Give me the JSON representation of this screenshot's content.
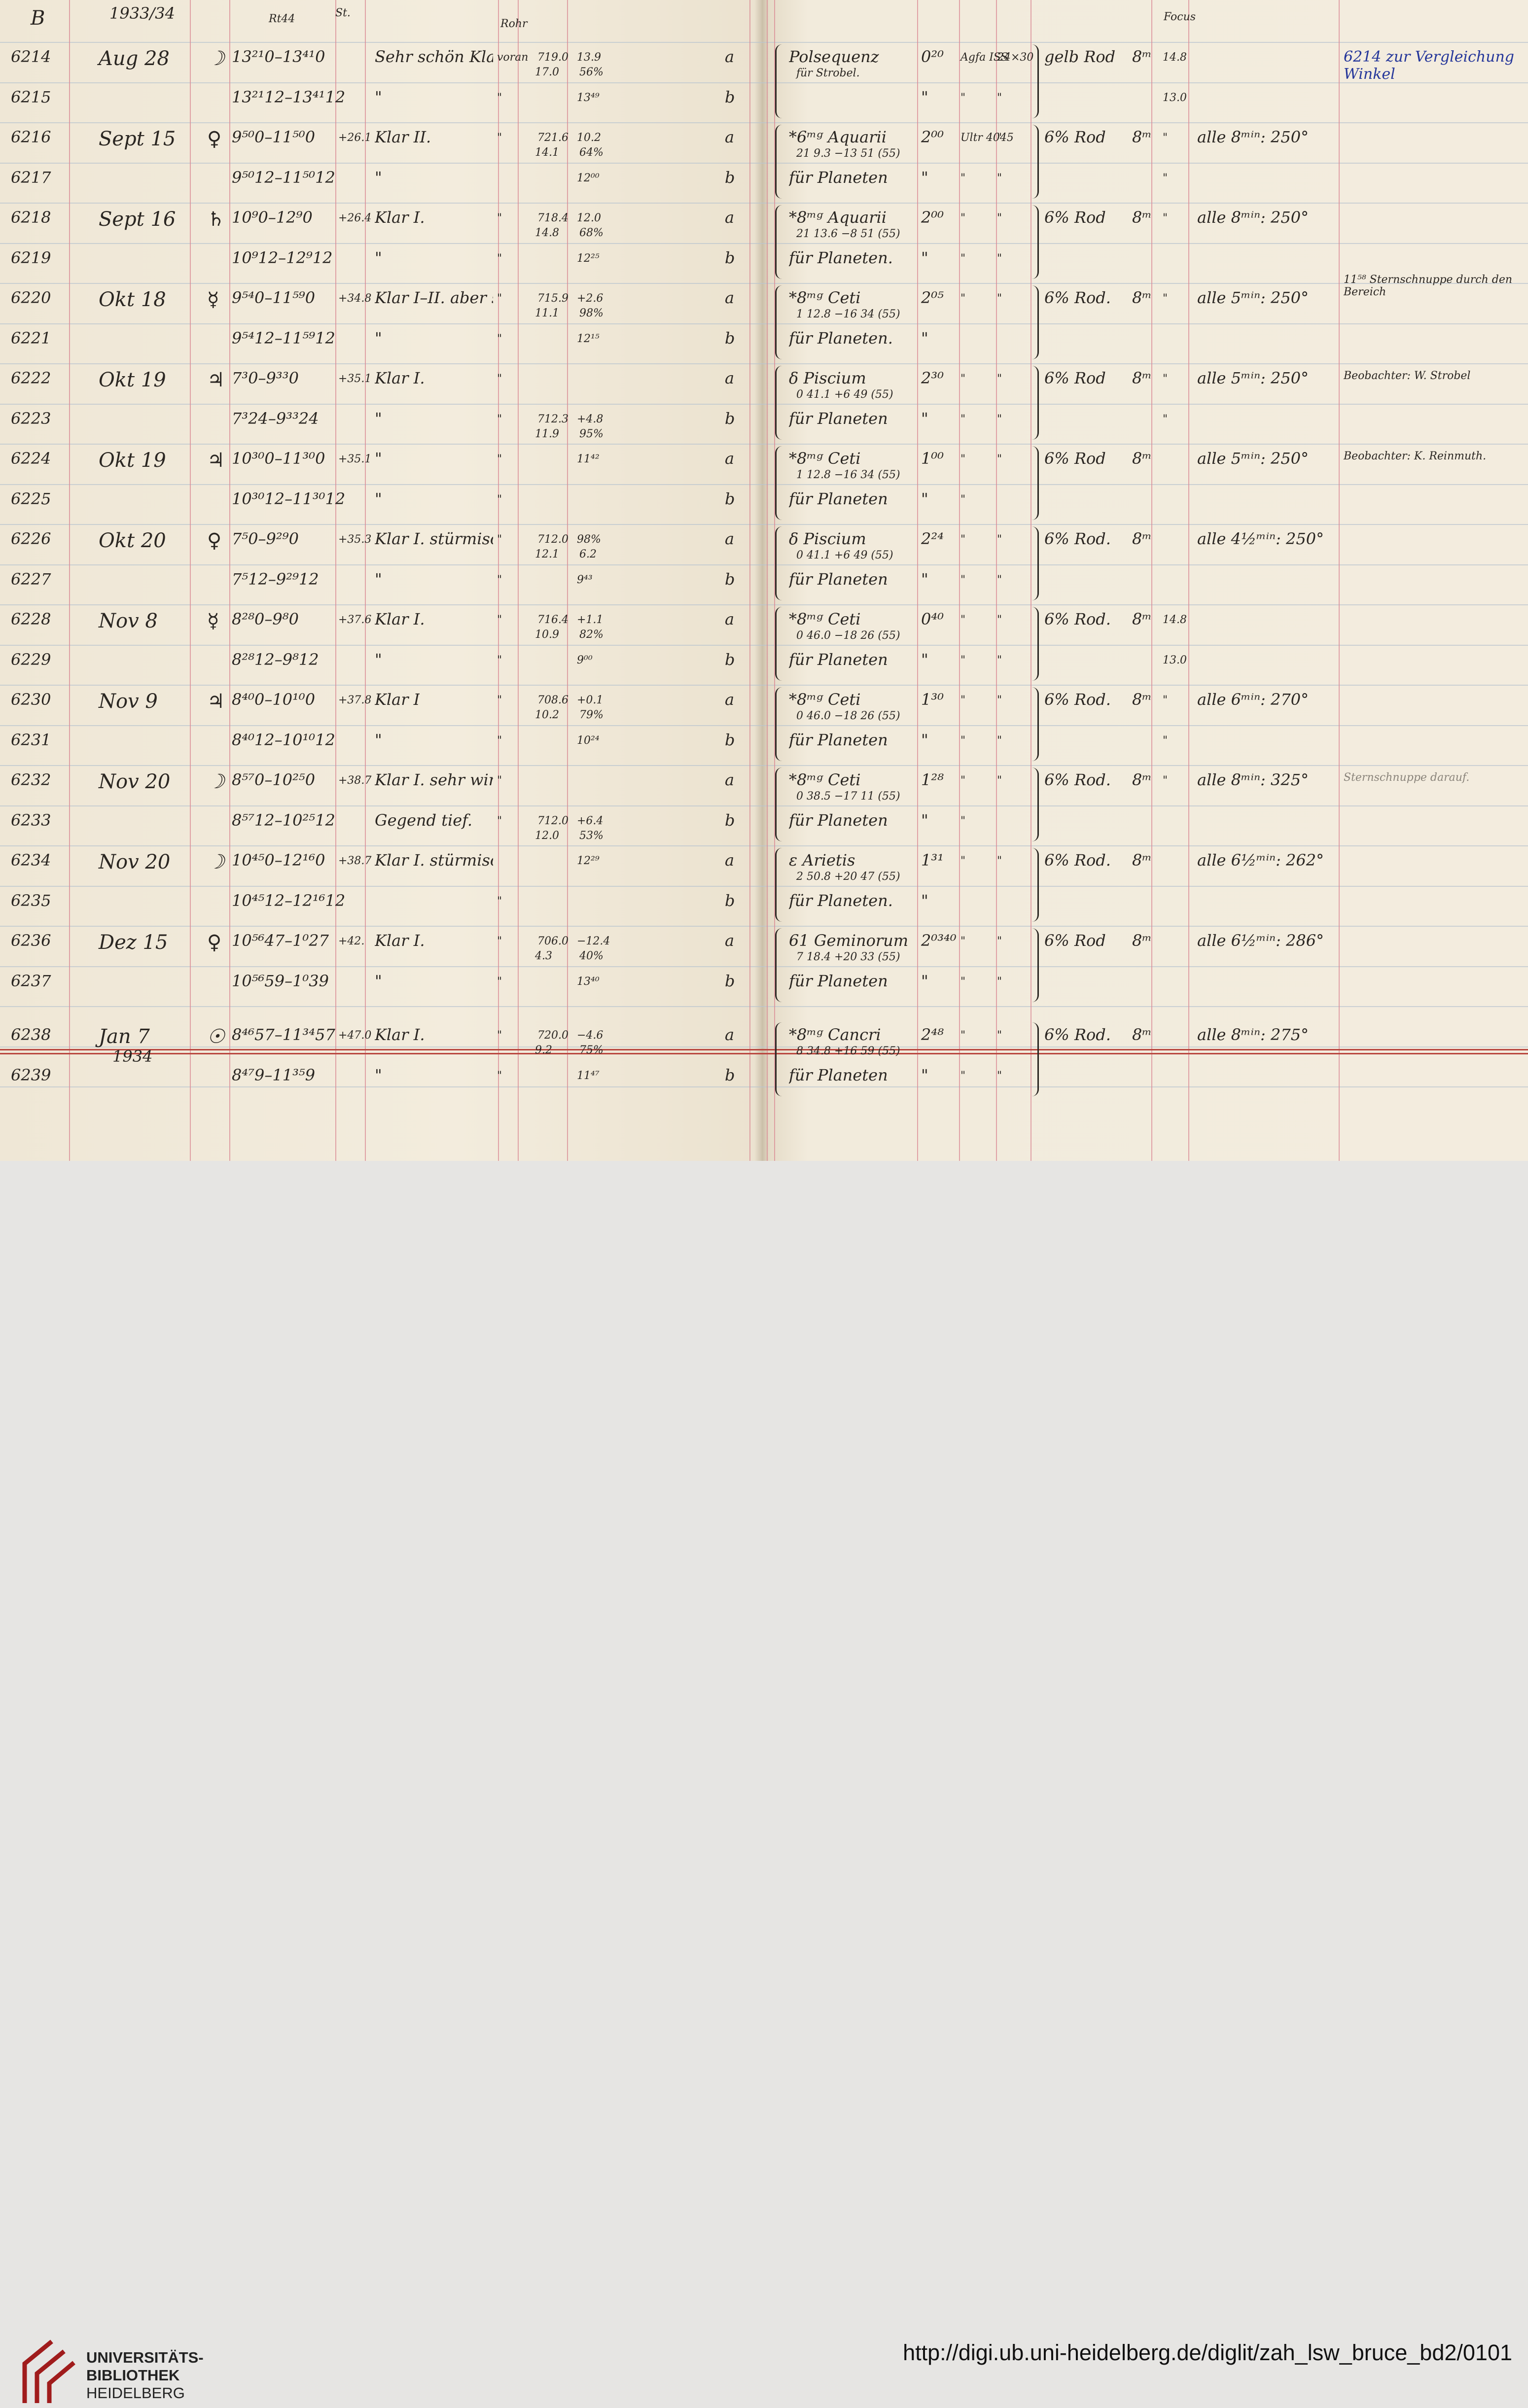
{
  "header": {
    "series": "B",
    "year": "1933/34",
    "col_time": "Rt44",
    "col_st": "St.",
    "col_rohr": "Rohr",
    "col_focus": "Focus"
  },
  "rows": [
    {
      "plate": "6214",
      "date": "Aug 28",
      "day": "☽",
      "time": "13²¹0–13⁴¹0",
      "temp": "",
      "weather": "Sehr schön Klar I.",
      "rohr": "voran",
      "baro": "719.0",
      "therm": "13.9",
      "t2": "17.0",
      "hum": "56%",
      "ab": "a",
      "object": "Polsequenz",
      "object_sub": "für Strobel.",
      "mag": "0²⁰",
      "cam": "Agfa ISS",
      "size": "24×30",
      "filter": "gelb Rod",
      "exp": "8ᵐ",
      "focus": "14.8",
      "note": "",
      "remark": "6214 zur Vergleichung Winkel"
    },
    {
      "plate": "6215",
      "date": "",
      "day": "",
      "time": "13²¹12–13⁴¹12",
      "temp": "",
      "weather": "\"",
      "rohr": "\"",
      "baro": "",
      "therm": "13⁴⁹",
      "t2": "",
      "hum": "",
      "ab": "b",
      "object": "",
      "object_sub": "",
      "mag": "\"",
      "cam": "\"",
      "size": "\"",
      "filter": "",
      "exp": "",
      "focus": "13.0",
      "note": "",
      "remark": ""
    },
    {
      "plate": "6216",
      "date": "Sept 15",
      "day": "♀",
      "time": "9⁵⁰0–11⁵⁰0",
      "temp": "+26.1",
      "weather": "Klar II.",
      "rohr": "\"",
      "baro": "721.6",
      "therm": "10.2",
      "t2": "14.1",
      "hum": "64%",
      "ab": "a",
      "object": "*6ᵐᵍ Aquarii",
      "object_sub": "21 9.3 −13 51 (55)",
      "mag": "2⁰⁰",
      "cam": "Ultr 4045",
      "size": "\"",
      "filter": "6% Rod",
      "exp": "8ᵐ",
      "focus": "\"",
      "note": "alle 8ᵐⁱⁿ: 250°",
      "remark": ""
    },
    {
      "plate": "6217",
      "date": "",
      "day": "",
      "time": "9⁵⁰12–11⁵⁰12",
      "temp": "",
      "weather": "\"",
      "rohr": "",
      "baro": "",
      "therm": "12⁰⁰",
      "t2": "",
      "hum": "",
      "ab": "b",
      "object": "für Planeten",
      "object_sub": "",
      "mag": "\"",
      "cam": "\"",
      "size": "\"",
      "filter": "",
      "exp": "",
      "focus": "\"",
      "note": "",
      "remark": ""
    },
    {
      "plate": "6218",
      "date": "Sept 16",
      "day": "♄",
      "time": "10⁹0–12⁹0",
      "temp": "+26.4",
      "weather": "Klar I.",
      "rohr": "\"",
      "baro": "718.4",
      "therm": "12.0",
      "t2": "14.8",
      "hum": "68%",
      "ab": "a",
      "object": "*8ᵐᵍ Aquarii",
      "object_sub": "21 13.6 −8 51 (55)",
      "mag": "2⁰⁰",
      "cam": "\"",
      "size": "\"",
      "filter": "6% Rod",
      "exp": "8ᵐ",
      "focus": "\"",
      "note": "alle 8ᵐⁱⁿ: 250°",
      "remark": ""
    },
    {
      "plate": "6219",
      "date": "",
      "day": "",
      "time": "10⁹12–12⁹12",
      "temp": "",
      "weather": "\"",
      "rohr": "\"",
      "baro": "",
      "therm": "12²⁵",
      "t2": "",
      "hum": "",
      "ab": "b",
      "object": "für Planeten.",
      "object_sub": "",
      "mag": "\"",
      "cam": "\"",
      "size": "\"",
      "filter": "",
      "exp": "",
      "focus": "",
      "note": "",
      "remark": ""
    },
    {
      "plate": "6220",
      "date": "Okt 18",
      "day": "☿",
      "time": "9⁵⁴0–11⁵⁹0",
      "temp": "+34.8",
      "weather": "Klar I–II. aber sehr feucht.",
      "rohr": "\"",
      "baro": "715.9",
      "therm": "+2.6",
      "t2": "11.1",
      "hum": "98%",
      "ab": "a",
      "object": "*8ᵐᵍ Ceti",
      "object_sub": "1 12.8 −16 34 (55)",
      "mag": "2⁰⁵",
      "cam": "\"",
      "size": "\"",
      "filter": "6% Rod.",
      "exp": "8ᵐ",
      "focus": "\"",
      "note": "alle 5ᵐⁱⁿ: 250°",
      "remark": "11⁵⁸ Sternschnuppe durch den Bereich"
    },
    {
      "plate": "6221",
      "date": "",
      "day": "",
      "time": "9⁵⁴12–11⁵⁹12",
      "temp": "",
      "weather": "\"",
      "rohr": "\"",
      "baro": "",
      "therm": "12¹⁵",
      "t2": "",
      "hum": "",
      "ab": "b",
      "object": "für Planeten.",
      "object_sub": "",
      "mag": "\"",
      "cam": "",
      "size": "",
      "filter": "",
      "exp": "",
      "focus": "",
      "note": "",
      "remark": ""
    },
    {
      "plate": "6222",
      "date": "Okt 19",
      "day": "♃",
      "time": "7³0–9³³0",
      "temp": "+35.1",
      "weather": "Klar I.",
      "rohr": "\"",
      "baro": "",
      "therm": "",
      "t2": "",
      "hum": "",
      "ab": "a",
      "object": "δ Piscium",
      "object_sub": "0 41.1 +6 49 (55)",
      "mag": "2³⁰",
      "cam": "\"",
      "size": "\"",
      "filter": "6% Rod",
      "exp": "8ᵐ",
      "focus": "\"",
      "note": "alle 5ᵐⁱⁿ: 250°",
      "remark": "Beobachter: W. Strobel"
    },
    {
      "plate": "6223",
      "date": "",
      "day": "",
      "time": "7³24–9³³24",
      "temp": "",
      "weather": "\"",
      "rohr": "\"",
      "baro": "712.3",
      "therm": "+4.8",
      "t2": "11.9",
      "hum": "95%",
      "ab": "b",
      "object": "für Planeten",
      "object_sub": "",
      "mag": "\"",
      "cam": "\"",
      "size": "\"",
      "filter": "",
      "exp": "",
      "focus": "\"",
      "note": "",
      "remark": ""
    },
    {
      "plate": "6224",
      "date": "Okt 19",
      "day": "♃",
      "time": "10³⁰0–11³⁰0",
      "temp": "+35.1",
      "weather": "\"",
      "rohr": "\"",
      "baro": "",
      "therm": "11⁴²",
      "t2": "",
      "hum": "",
      "ab": "a",
      "object": "*8ᵐᵍ Ceti",
      "object_sub": "1 12.8 −16 34 (55)",
      "mag": "1⁰⁰",
      "cam": "\"",
      "size": "\"",
      "filter": "6% Rod",
      "exp": "8ᵐ",
      "focus": "",
      "note": "alle 5ᵐⁱⁿ: 250°",
      "remark": "Beobachter: K. Reinmuth."
    },
    {
      "plate": "6225",
      "date": "",
      "day": "",
      "time": "10³⁰12–11³⁰12",
      "temp": "",
      "weather": "\"",
      "rohr": "\"",
      "baro": "",
      "therm": "",
      "t2": "",
      "hum": "",
      "ab": "b",
      "object": "für Planeten",
      "object_sub": "",
      "mag": "\"",
      "cam": "\"",
      "size": "",
      "filter": "",
      "exp": "",
      "focus": "",
      "note": "",
      "remark": ""
    },
    {
      "plate": "6226",
      "date": "Okt 20",
      "day": "♀",
      "time": "7⁵0–9²⁹0",
      "temp": "+35.3",
      "weather": "Klar I. stürmisch.",
      "rohr": "\"",
      "baro": "712.0",
      "therm": "98%",
      "t2": "12.1",
      "hum": "6.2",
      "ab": "a",
      "object": "δ Piscium",
      "object_sub": "0 41.1 +6 49 (55)",
      "mag": "2²⁴",
      "cam": "\"",
      "size": "\"",
      "filter": "6% Rod.",
      "exp": "8ᵐ",
      "focus": "",
      "note": "alle 4½ᵐⁱⁿ: 250°",
      "remark": ""
    },
    {
      "plate": "6227",
      "date": "",
      "day": "",
      "time": "7⁵12–9²⁹12",
      "temp": "",
      "weather": "\"",
      "rohr": "\"",
      "baro": "",
      "therm": "9⁴³",
      "t2": "",
      "hum": "",
      "ab": "b",
      "object": "für Planeten",
      "object_sub": "",
      "mag": "\"",
      "cam": "\"",
      "size": "\"",
      "filter": "",
      "exp": "",
      "focus": "",
      "note": "",
      "remark": ""
    },
    {
      "plate": "6228",
      "date": "Nov 8",
      "day": "☿",
      "time": "8²⁸0–9⁸0",
      "temp": "+37.6",
      "weather": "Klar I.",
      "rohr": "\"",
      "baro": "716.4",
      "therm": "+1.1",
      "t2": "10.9",
      "hum": "82%",
      "ab": "a",
      "object": "*8ᵐᵍ Ceti",
      "object_sub": "0 46.0 −18 26 (55)",
      "mag": "0⁴⁰",
      "cam": "\"",
      "size": "\"",
      "filter": "6% Rod.",
      "exp": "8ᵐ",
      "focus": "14.8",
      "note": "",
      "remark": ""
    },
    {
      "plate": "6229",
      "date": "",
      "day": "",
      "time": "8²⁸12–9⁸12",
      "temp": "",
      "weather": "\"",
      "rohr": "\"",
      "baro": "",
      "therm": "9⁰⁰",
      "t2": "",
      "hum": "",
      "ab": "b",
      "object": "für Planeten",
      "object_sub": "",
      "mag": "\"",
      "cam": "\"",
      "size": "\"",
      "filter": "",
      "exp": "",
      "focus": "13.0",
      "note": "",
      "remark": ""
    },
    {
      "plate": "6230",
      "date": "Nov 9",
      "day": "♃",
      "time": "8⁴⁰0–10¹⁰0",
      "temp": "+37.8",
      "weather": "Klar I",
      "rohr": "\"",
      "baro": "708.6",
      "therm": "+0.1",
      "t2": "10.2",
      "hum": "79%",
      "ab": "a",
      "object": "*8ᵐᵍ Ceti",
      "object_sub": "0 46.0 −18 26 (55)",
      "mag": "1³⁰",
      "cam": "\"",
      "size": "\"",
      "filter": "6% Rod.",
      "exp": "8ᵐ",
      "focus": "\"",
      "note": "alle 6ᵐⁱⁿ: 270°",
      "remark": ""
    },
    {
      "plate": "6231",
      "date": "",
      "day": "",
      "time": "8⁴⁰12–10¹⁰12",
      "temp": "",
      "weather": "\"",
      "rohr": "\"",
      "baro": "",
      "therm": "10²⁴",
      "t2": "",
      "hum": "",
      "ab": "b",
      "object": "für Planeten",
      "object_sub": "",
      "mag": "\"",
      "cam": "\"",
      "size": "\"",
      "filter": "",
      "exp": "",
      "focus": "\"",
      "note": "",
      "remark": ""
    },
    {
      "plate": "6232",
      "date": "Nov 20",
      "day": "☽",
      "time": "8⁵⁷0–10²⁵0",
      "temp": "+38.7",
      "weather": "Klar I. sehr windig.",
      "rohr": "\"",
      "baro": "",
      "therm": "",
      "t2": "",
      "hum": "",
      "ab": "a",
      "object": "*8ᵐᵍ Ceti",
      "object_sub": "0 38.5 −17 11 (55)",
      "mag": "1²⁸",
      "cam": "\"",
      "size": "\"",
      "filter": "6% Rod.",
      "exp": "8ᵐ",
      "focus": "\"",
      "note": "alle 8ᵐⁱⁿ: 325°",
      "remark": "Sternschnuppe darauf."
    },
    {
      "plate": "6233",
      "date": "",
      "day": "",
      "time": "8⁵⁷12–10²⁵12",
      "temp": "",
      "weather": "Gegend tief.",
      "rohr": "\"",
      "baro": "712.0",
      "therm": "+6.4",
      "t2": "12.0",
      "hum": "53%",
      "ab": "b",
      "object": "für Planeten",
      "object_sub": "",
      "mag": "\"",
      "cam": "\"",
      "size": "",
      "filter": "",
      "exp": "",
      "focus": "",
      "note": "",
      "remark": ""
    },
    {
      "plate": "6234",
      "date": "Nov 20",
      "day": "☽",
      "time": "10⁴⁵0–12¹⁶0",
      "temp": "+38.7",
      "weather": "Klar I. stürmisch",
      "rohr": "",
      "baro": "",
      "therm": "12²⁹",
      "t2": "",
      "hum": "",
      "ab": "a",
      "object": "ε Arietis",
      "object_sub": "2 50.8 +20 47 (55)",
      "mag": "1³¹",
      "cam": "\"",
      "size": "\"",
      "filter": "6% Rod.",
      "exp": "8ᵐ",
      "focus": "",
      "note": "alle 6½ᵐⁱⁿ: 262°",
      "remark": ""
    },
    {
      "plate": "6235",
      "date": "",
      "day": "",
      "time": "10⁴⁵12–12¹⁶12",
      "temp": "",
      "weather": "",
      "rohr": "\"",
      "baro": "",
      "therm": "",
      "t2": "",
      "hum": "",
      "ab": "b",
      "object": "für Planeten.",
      "object_sub": "",
      "mag": "\"",
      "cam": "",
      "size": "",
      "filter": "",
      "exp": "",
      "focus": "",
      "note": "",
      "remark": ""
    },
    {
      "plate": "6236",
      "date": "Dez 15",
      "day": "♀",
      "time": "10⁵⁶47–1⁰27",
      "temp": "+42.",
      "weather": "Klar I.",
      "rohr": "\"",
      "baro": "706.0",
      "therm": "−12.4",
      "t2": "4.3",
      "hum": "40%",
      "ab": "a",
      "object": "61 Geminorum",
      "object_sub": "7 18.4 +20 33 (55)",
      "mag": "2⁰³⁴⁰",
      "cam": "\"",
      "size": "\"",
      "filter": "6% Rod",
      "exp": "8ᵐ",
      "focus": "",
      "note": "alle 6½ᵐⁱⁿ: 286°",
      "remark": ""
    },
    {
      "plate": "6237",
      "date": "",
      "day": "",
      "time": "10⁵⁶59–1⁰39",
      "temp": "",
      "weather": "\"",
      "rohr": "\"",
      "baro": "",
      "therm": "13⁴⁰",
      "t2": "",
      "hum": "",
      "ab": "b",
      "object": "für Planeten",
      "object_sub": "",
      "mag": "\"",
      "cam": "\"",
      "size": "\"",
      "filter": "",
      "exp": "",
      "focus": "",
      "note": "",
      "remark": ""
    },
    {
      "plate": "6238",
      "date": "Jan 7",
      "day": "☉",
      "time": "8⁴⁶57–11³⁴57",
      "temp": "+47.0",
      "weather": "Klar I.",
      "rohr": "\"",
      "baro": "720.0",
      "therm": "−4.6",
      "t2": "9.2",
      "hum": "75%",
      "ab": "a",
      "object": "*8ᵐᵍ Cancri",
      "object_sub": "8 34.8 +16 59 (55)",
      "mag": "2⁴⁸",
      "cam": "\"",
      "size": "\"",
      "filter": "6% Rod.",
      "exp": "8ᵐ",
      "focus": "",
      "note": "alle 8ᵐⁱⁿ: 275°",
      "remark": ""
    },
    {
      "plate": "6239",
      "date": "",
      "day": "",
      "time": "8⁴⁷9–11³⁵9",
      "temp": "",
      "weather": "\"",
      "rohr": "\"",
      "baro": "",
      "therm": "11⁴⁷",
      "t2": "",
      "hum": "",
      "ab": "b",
      "object": "für Planeten",
      "object_sub": "",
      "mag": "\"",
      "cam": "\"",
      "size": "\"",
      "filter": "",
      "exp": "",
      "focus": "",
      "note": "",
      "remark": ""
    }
  ],
  "year_mark_1934": "1934",
  "footer": {
    "logo_line1": "UNIVERSITÄTS-",
    "logo_line2": "BIBLIOTHEK",
    "logo_line3": "HEIDELBERG",
    "url": "http://digi.ub.uni-heidelberg.de/diglit/zah_lsw_bruce_bd2/0101",
    "logo_color": "#a01c1c"
  }
}
